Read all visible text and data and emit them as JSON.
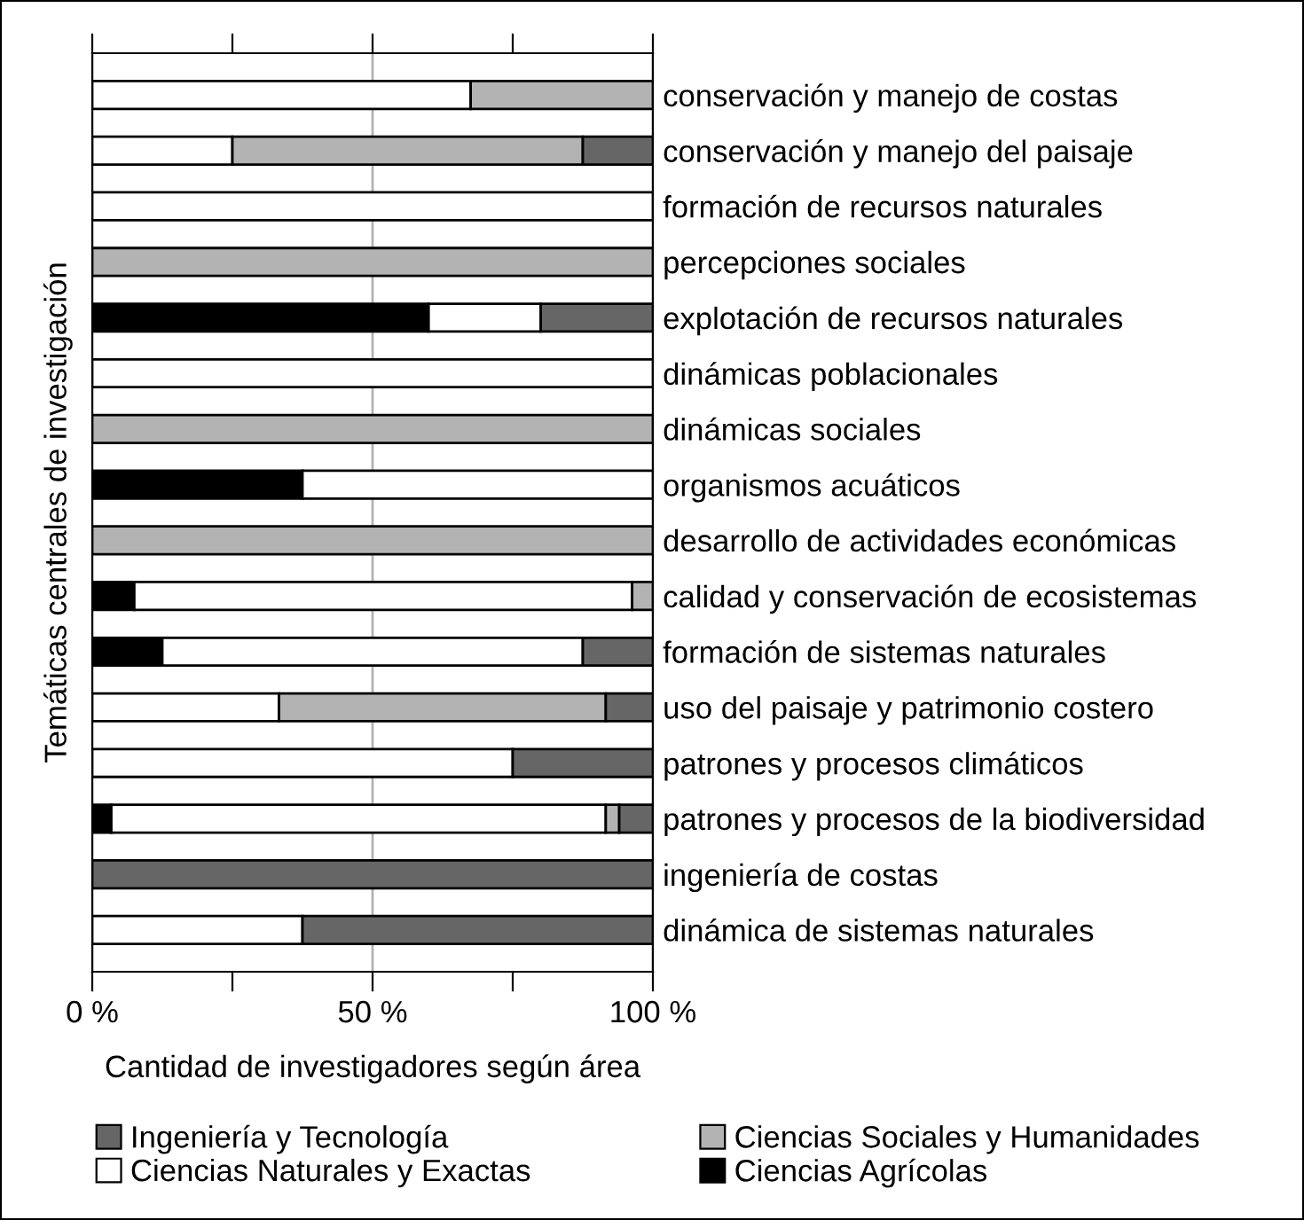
{
  "chart_data": {
    "type": "bar",
    "orientation": "horizontal",
    "stacked": true,
    "xlabel": "Cantidad de investigadores según área",
    "ylabel": "Temáticas centrales de investigación",
    "categories": [
      "conservación y manejo de costas",
      "conservación y manejo del paisaje",
      "formación de recursos naturales",
      "percepciones sociales",
      "explotación de recursos naturales",
      "dinámicas poblacionales",
      "dinámicas sociales",
      "organismos acuáticos",
      "desarrollo de actividades económicas",
      "calidad y conservación de ecosistemas",
      "formación de sistemas naturales",
      "uso del paisaje y patrimonio costero",
      "patrones y procesos climáticos",
      "patrones y procesos de la biodiversidad",
      "ingeniería de costas",
      "dinámica de sistemas naturales"
    ],
    "series": [
      {
        "name": "Ciencias Agrícolas",
        "color": "#000000",
        "values": [
          0,
          0,
          0,
          0,
          60,
          0,
          0,
          37.5,
          0,
          7.5,
          12.5,
          0,
          0,
          3.4,
          0,
          0
        ]
      },
      {
        "name": "Ciencias Naturales y Exactas",
        "color": "#ffffff",
        "values": [
          67.5,
          25,
          100,
          0,
          20,
          100,
          0,
          62.5,
          0,
          88.8,
          75,
          33.3,
          75,
          88.2,
          0,
          37.5
        ]
      },
      {
        "name": "Ciencias Sociales y Humanidades",
        "color": "#b3b3b3",
        "values": [
          32.5,
          62.5,
          0,
          100,
          0,
          0,
          100,
          0,
          100,
          3.7,
          0,
          58.3,
          0,
          2.4,
          0,
          0
        ]
      },
      {
        "name": "Ingeniería y Tecnología",
        "color": "#666666",
        "values": [
          0,
          12.5,
          0,
          0,
          20,
          0,
          0,
          0,
          0,
          0,
          12.5,
          8.4,
          25,
          6.0,
          100,
          62.5
        ]
      }
    ],
    "xlim": [
      0,
      100
    ],
    "xticks": [
      {
        "value": 0,
        "label": "0 %"
      },
      {
        "value": 25,
        "label": null
      },
      {
        "value": 50,
        "label": "50 %"
      },
      {
        "value": 75,
        "label": null
      },
      {
        "value": 100,
        "label": "100 %"
      }
    ],
    "grid": "x",
    "legend": "bottom"
  }
}
